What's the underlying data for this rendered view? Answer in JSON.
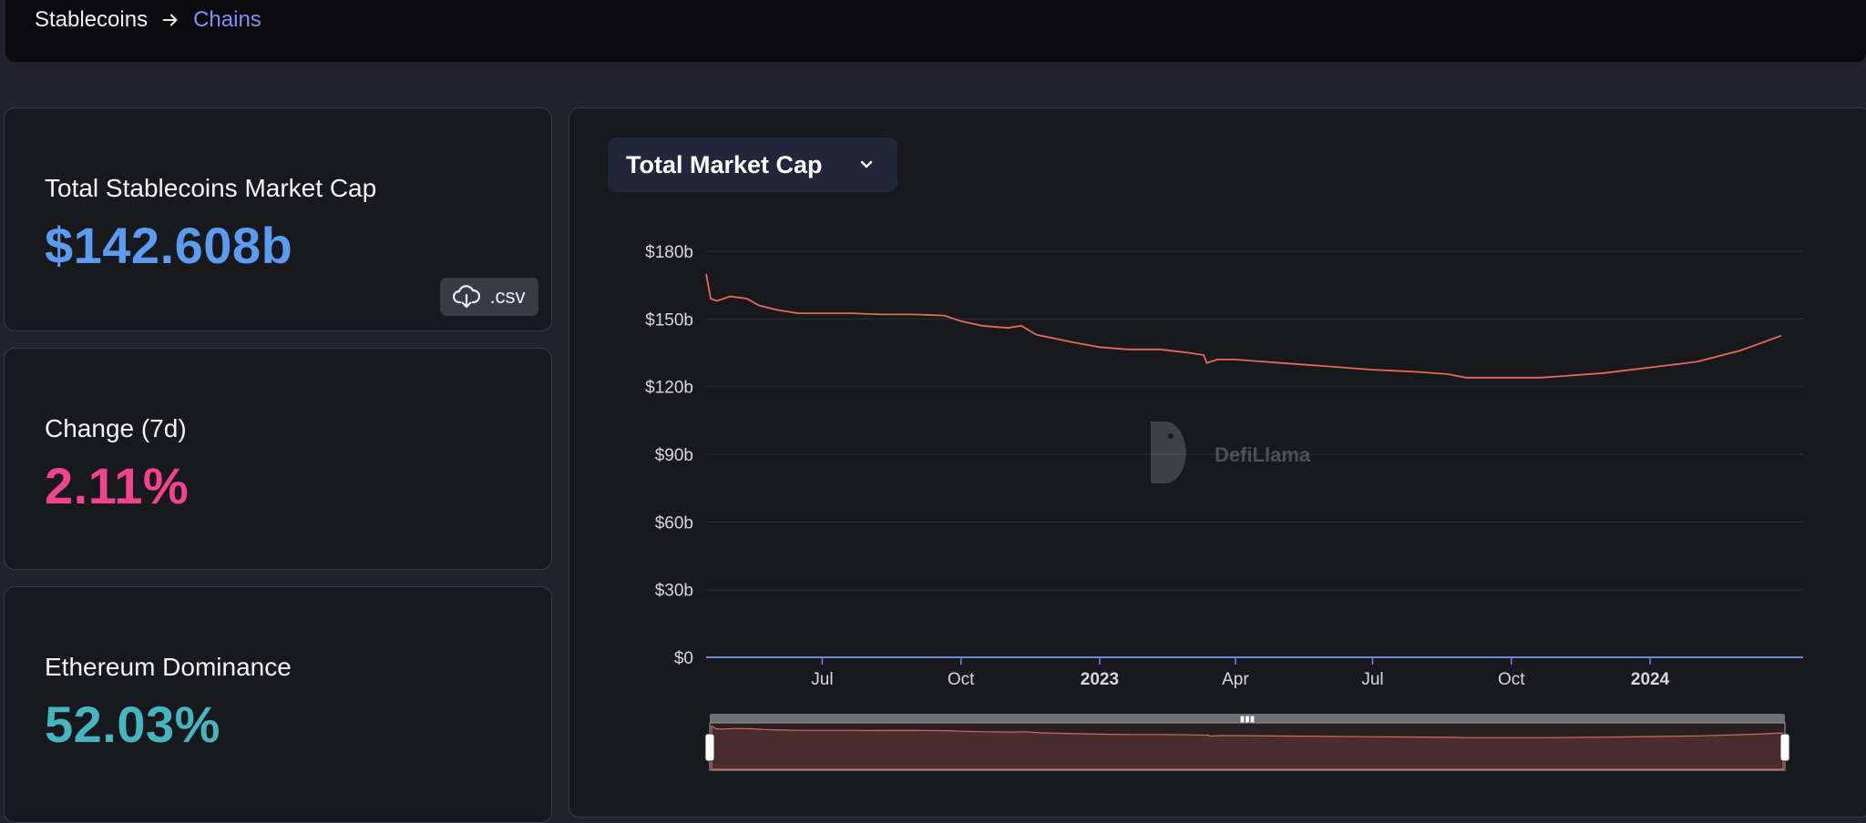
{
  "breadcrumb": {
    "root": "Stablecoins",
    "current": "Chains"
  },
  "stats": {
    "market_cap": {
      "label": "Total Stablecoins Market Cap",
      "value": "$142.608b",
      "color": "#5b9cf0"
    },
    "change": {
      "label": "Change (7d)",
      "value": "2.11%",
      "color": "#f0448e"
    },
    "dominance": {
      "label": "Ethereum Dominance",
      "value": "52.03%",
      "color": "#47b5c0"
    }
  },
  "csv_button": {
    "label": ".csv",
    "icon": "cloud-download-icon"
  },
  "chart": {
    "selector_label": "Total Market Cap",
    "watermark": "DefiLlama"
  },
  "chart_data": {
    "type": "line",
    "ylim": [
      0,
      180
    ],
    "y_ticks": [
      0,
      30,
      60,
      90,
      120,
      150,
      180
    ],
    "y_tick_labels": [
      "$0",
      "$30b",
      "$60b",
      "$90b",
      "$120b",
      "$150b",
      "$180b"
    ],
    "x_tick_labels": [
      "Jul",
      "Oct",
      "2023",
      "Apr",
      "Jul",
      "Oct",
      "2024"
    ],
    "x_tick_dates": [
      "2022-07-01",
      "2022-10-01",
      "2023-01-01",
      "2023-04-01",
      "2023-07-01",
      "2023-10-01",
      "2024-01-01"
    ],
    "x_range": [
      "2022-04-15",
      "2024-03-28"
    ],
    "grid": true,
    "line_color": "#e4695f",
    "series": [
      {
        "x": [
          "2022-04-15",
          "2022-04-18",
          "2022-04-22",
          "2022-05-01",
          "2022-05-12",
          "2022-05-20",
          "2022-06-01",
          "2022-06-15",
          "2022-07-01",
          "2022-07-20",
          "2022-08-10",
          "2022-09-01",
          "2022-09-20",
          "2022-10-01",
          "2022-10-15",
          "2022-11-01",
          "2022-11-10",
          "2022-11-20",
          "2022-12-01",
          "2022-12-15",
          "2023-01-01",
          "2023-01-20",
          "2023-02-10",
          "2023-03-01",
          "2023-03-11",
          "2023-03-13",
          "2023-03-20",
          "2023-04-01",
          "2023-05-01",
          "2023-06-01",
          "2023-07-01",
          "2023-08-01",
          "2023-08-20",
          "2023-09-01",
          "2023-10-01",
          "2023-10-20",
          "2023-11-01",
          "2023-12-01",
          "2024-01-01",
          "2024-02-01",
          "2024-03-01",
          "2024-03-28"
        ],
        "values": [
          170,
          159,
          158,
          160,
          159,
          156,
          154,
          152.5,
          152.5,
          152.5,
          152,
          152,
          151.5,
          149,
          147,
          146,
          147,
          143,
          141.5,
          139.5,
          137.5,
          136.5,
          136.5,
          135,
          134,
          130.5,
          132,
          132,
          130.5,
          129,
          127.5,
          126.5,
          125.5,
          124,
          124,
          124,
          124.5,
          126,
          128.5,
          131,
          136,
          142.6
        ]
      }
    ]
  }
}
